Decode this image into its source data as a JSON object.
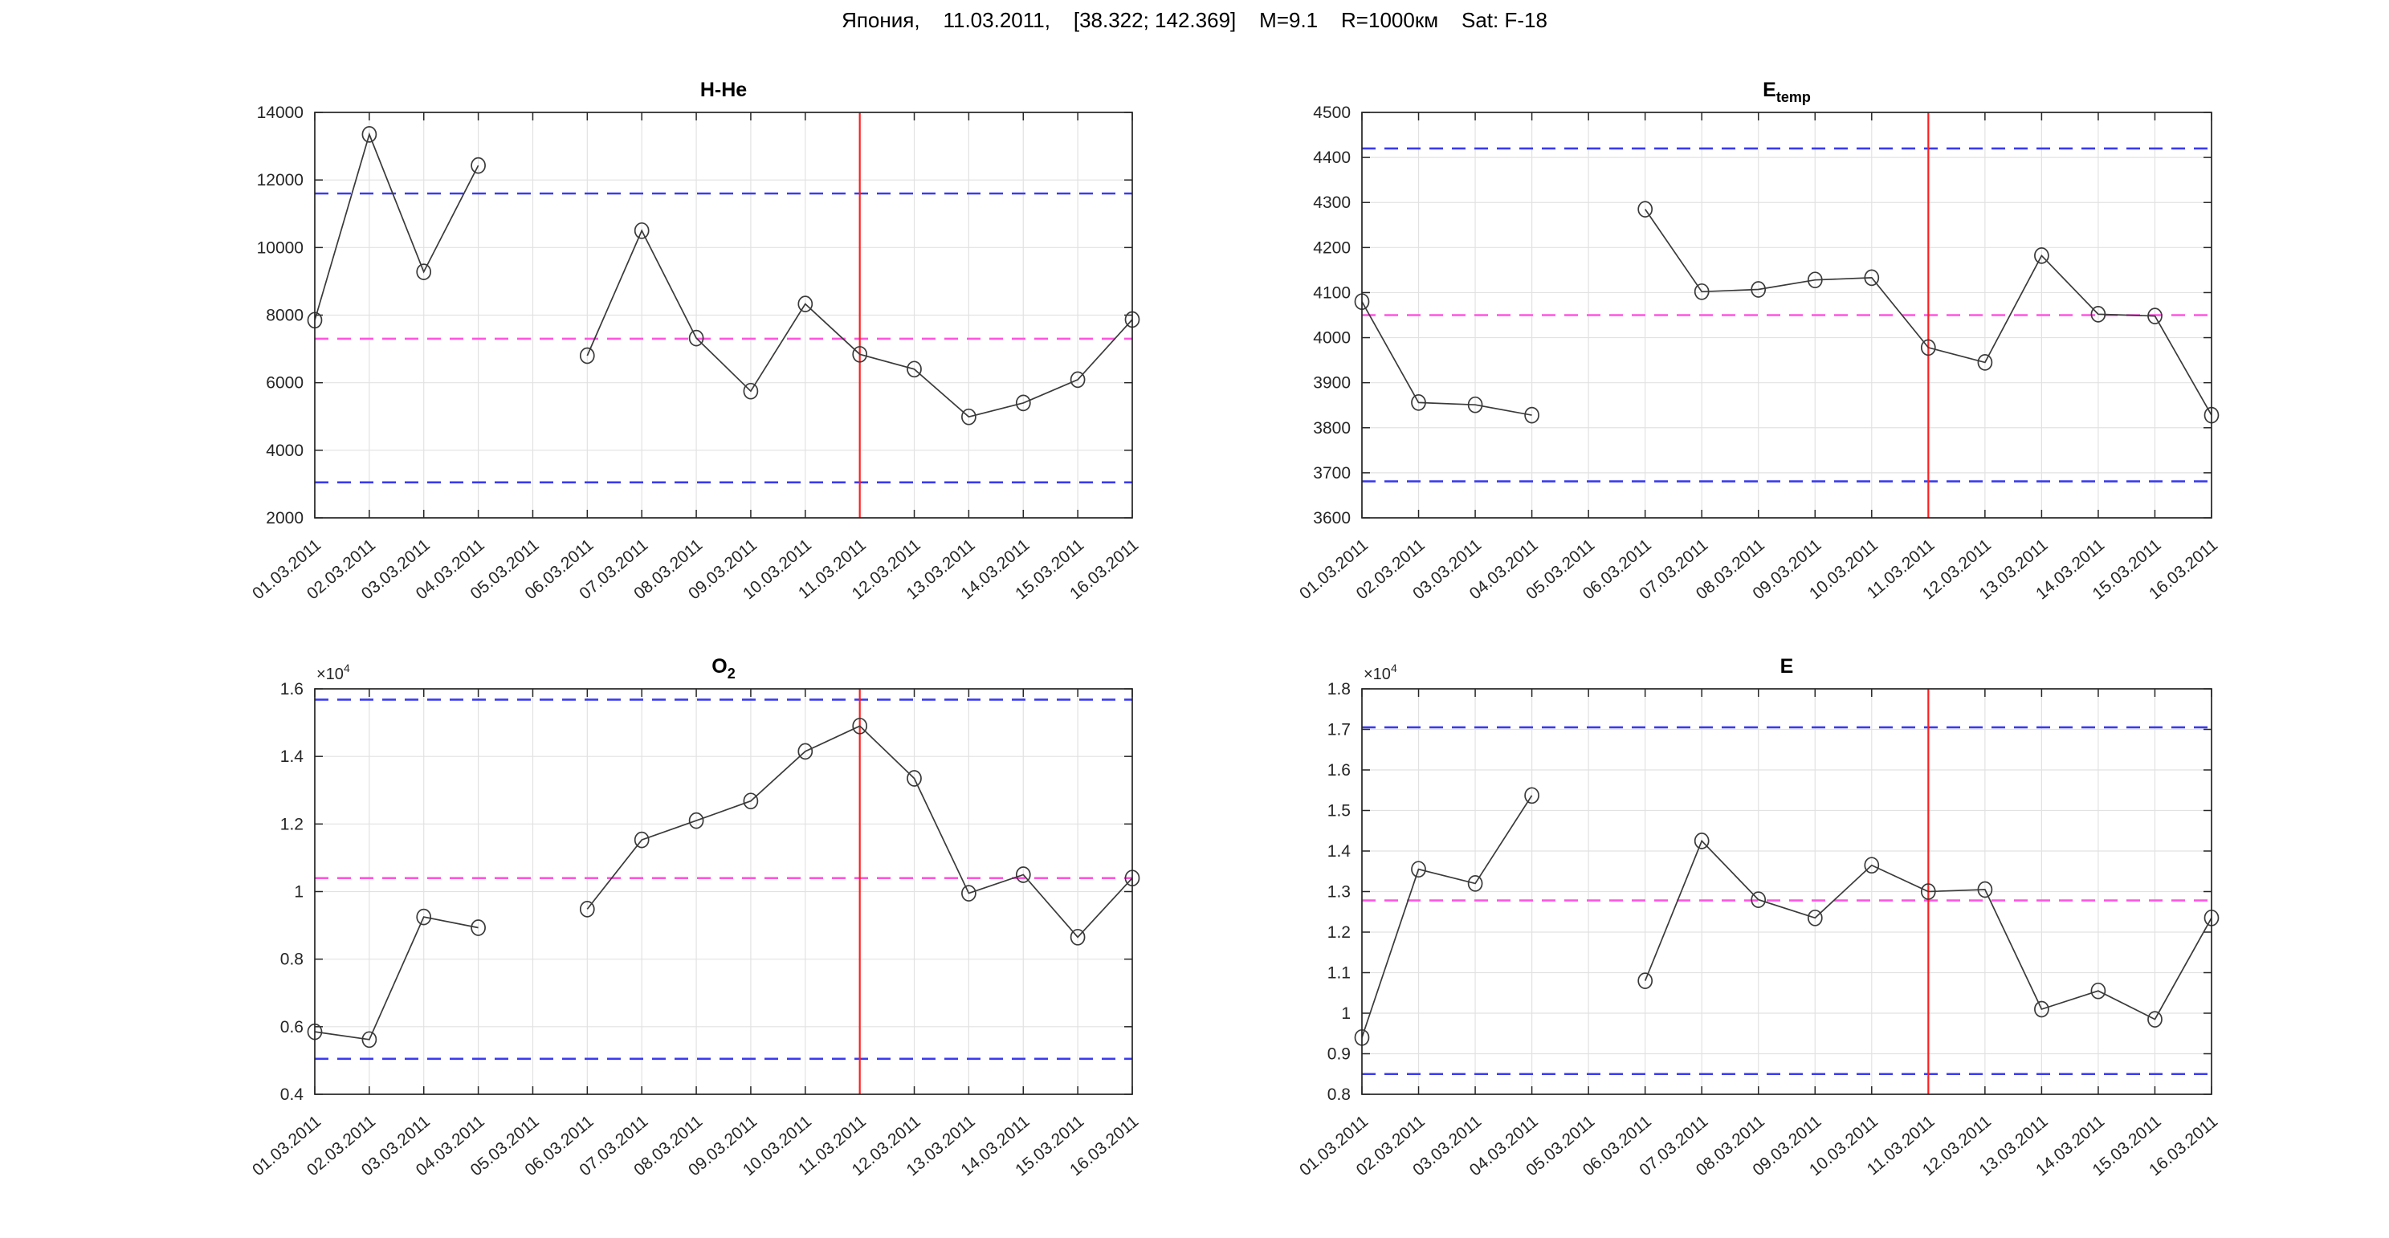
{
  "figure": {
    "title": "Япония,    11.03.2011,    [38.322; 142.369]    M=9.1    R=1000км    Sat: F-18"
  },
  "colors": {
    "bound_line": "#3b3bf0",
    "mean_line": "#ff55e0",
    "event_line": "#ff1f1f",
    "series_line": "#3a3a3a",
    "grid": "#e2e2e2",
    "axis": "#262626",
    "tick_text": "#262626",
    "title_text": "#000000"
  },
  "event_date": "11.03.2011",
  "chart_data": [
    {
      "type": "line",
      "title": "H-He",
      "title_sub": "",
      "exponent_base": "",
      "exponent_power": "",
      "xlabel": "",
      "ylabel": "",
      "grid": true,
      "marker": "o",
      "categories": [
        "01.03.2011",
        "02.03.2011",
        "03.03.2011",
        "04.03.2011",
        "05.03.2011",
        "06.03.2011",
        "07.03.2011",
        "08.03.2011",
        "09.03.2011",
        "10.03.2011",
        "11.03.2011",
        "12.03.2011",
        "13.03.2011",
        "14.03.2011",
        "15.03.2011",
        "16.03.2011"
      ],
      "values": [
        7850,
        13350,
        9280,
        12430,
        null,
        6800,
        10500,
        7320,
        5750,
        8330,
        6840,
        6400,
        4990,
        5400,
        6090,
        7870
      ],
      "ylim": [
        2000,
        14000
      ],
      "yticks": [
        2000,
        4000,
        6000,
        8000,
        10000,
        12000,
        14000
      ],
      "ytick_labels": [
        "2000",
        "4000",
        "6000",
        "8000",
        "10000",
        "12000",
        "14000"
      ],
      "upper_bound": 11600,
      "lower_bound": 3050,
      "mean_line": 7300,
      "event_index": 10
    },
    {
      "type": "line",
      "title": "E",
      "title_sub": "temp",
      "exponent_base": "",
      "exponent_power": "",
      "xlabel": "",
      "ylabel": "",
      "grid": true,
      "marker": "o",
      "categories": [
        "01.03.2011",
        "02.03.2011",
        "03.03.2011",
        "04.03.2011",
        "05.03.2011",
        "06.03.2011",
        "07.03.2011",
        "08.03.2011",
        "09.03.2011",
        "10.03.2011",
        "11.03.2011",
        "12.03.2011",
        "13.03.2011",
        "14.03.2011",
        "15.03.2011",
        "16.03.2011"
      ],
      "values": [
        4080,
        3856,
        3851,
        3828,
        null,
        4285,
        4102,
        4107,
        4128,
        4133,
        3978,
        3945,
        4182,
        4052,
        4048,
        3828
      ],
      "ylim": [
        3600,
        4500
      ],
      "yticks": [
        3600,
        3700,
        3800,
        3900,
        4000,
        4100,
        4200,
        4300,
        4400,
        4500
      ],
      "ytick_labels": [
        "3600",
        "3700",
        "3800",
        "3900",
        "4000",
        "4100",
        "4200",
        "4300",
        "4400",
        "4500"
      ],
      "upper_bound": 4420,
      "lower_bound": 3681,
      "mean_line": 4050,
      "event_index": 10
    },
    {
      "type": "line",
      "title": "O",
      "title_sub": "2",
      "exponent_base": "×10",
      "exponent_power": "4",
      "xlabel": "",
      "ylabel": "",
      "grid": true,
      "marker": "o",
      "categories": [
        "01.03.2011",
        "02.03.2011",
        "03.03.2011",
        "04.03.2011",
        "05.03.2011",
        "06.03.2011",
        "07.03.2011",
        "08.03.2011",
        "09.03.2011",
        "10.03.2011",
        "11.03.2011",
        "12.03.2011",
        "13.03.2011",
        "14.03.2011",
        "15.03.2011",
        "16.03.2011"
      ],
      "values": [
        0.585,
        0.562,
        0.925,
        0.893,
        null,
        0.948,
        1.153,
        1.21,
        1.268,
        1.415,
        1.49,
        1.335,
        0.995,
        1.05,
        0.865,
        1.04
      ],
      "ylim": [
        0.4,
        1.6
      ],
      "yticks": [
        0.4,
        0.6,
        0.8,
        1.0,
        1.2,
        1.4,
        1.6
      ],
      "ytick_labels": [
        "0.4",
        "0.6",
        "0.8",
        "1",
        "1.2",
        "1.4",
        "1.6"
      ],
      "upper_bound": 1.568,
      "lower_bound": 0.505,
      "mean_line": 1.04,
      "event_index": 10
    },
    {
      "type": "line",
      "title": "E",
      "title_sub": "",
      "exponent_base": "×10",
      "exponent_power": "4",
      "xlabel": "",
      "ylabel": "",
      "grid": true,
      "marker": "o",
      "categories": [
        "01.03.2011",
        "02.03.2011",
        "03.03.2011",
        "04.03.2011",
        "05.03.2011",
        "06.03.2011",
        "07.03.2011",
        "08.03.2011",
        "09.03.2011",
        "10.03.2011",
        "11.03.2011",
        "12.03.2011",
        "13.03.2011",
        "14.03.2011",
        "15.03.2011",
        "16.03.2011"
      ],
      "values": [
        0.94,
        1.355,
        1.32,
        1.537,
        null,
        1.08,
        1.425,
        1.28,
        1.235,
        1.365,
        1.3,
        1.305,
        1.01,
        1.055,
        0.985,
        1.235
      ],
      "ylim": [
        0.8,
        1.8
      ],
      "yticks": [
        0.8,
        0.9,
        1.0,
        1.1,
        1.2,
        1.3,
        1.4,
        1.5,
        1.6,
        1.7,
        1.8
      ],
      "ytick_labels": [
        "0.8",
        "0.9",
        "1",
        "1.1",
        "1.2",
        "1.3",
        "1.4",
        "1.5",
        "1.6",
        "1.7",
        "1.8"
      ],
      "upper_bound": 1.705,
      "lower_bound": 0.85,
      "mean_line": 1.278,
      "event_index": 10
    }
  ]
}
